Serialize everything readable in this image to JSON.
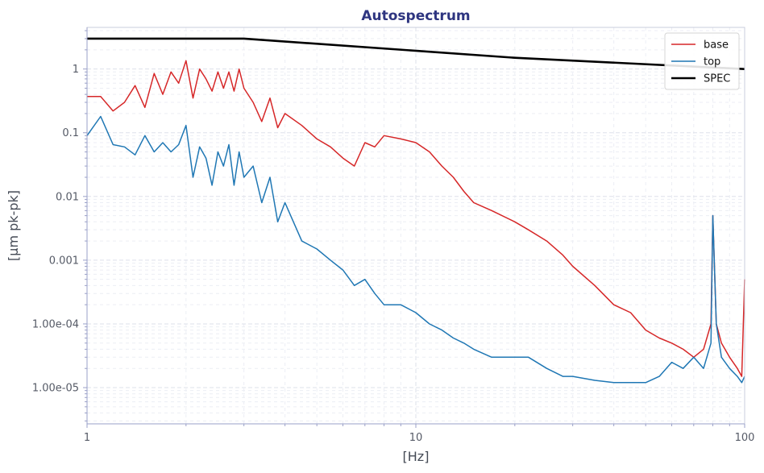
{
  "chart_data": {
    "type": "line",
    "title": "Autospectrum",
    "xlabel": "[Hz]",
    "ylabel": "[µm pk-pk]",
    "x_scale": "log",
    "y_scale": "log",
    "xlim": [
      1,
      100
    ],
    "ylim": [
      2.7e-06,
      4.5
    ],
    "x_ticks": [
      {
        "value": 1,
        "label": "1"
      },
      {
        "value": 10,
        "label": "10"
      },
      {
        "value": 100,
        "label": "100"
      }
    ],
    "y_ticks": [
      {
        "value": 1,
        "label": "1"
      },
      {
        "value": 0.1,
        "label": "0.1"
      },
      {
        "value": 0.01,
        "label": "0.01"
      },
      {
        "value": 0.001,
        "label": "0.001"
      },
      {
        "value": 0.0001,
        "label": "1.00e-04"
      },
      {
        "value": 1e-05,
        "label": "1.00e-05"
      }
    ],
    "grid": true,
    "legend_position": "top-right",
    "series": [
      {
        "name": "base",
        "color": "#d62728",
        "x": [
          1,
          1.1,
          1.2,
          1.3,
          1.4,
          1.5,
          1.6,
          1.7,
          1.8,
          1.9,
          2.0,
          2.1,
          2.2,
          2.3,
          2.4,
          2.5,
          2.6,
          2.7,
          2.8,
          2.9,
          3.0,
          3.2,
          3.4,
          3.6,
          3.8,
          4.0,
          4.5,
          5.0,
          5.5,
          6.0,
          6.5,
          7.0,
          7.5,
          8.0,
          9.0,
          10,
          11,
          12,
          13,
          14,
          15,
          17,
          20,
          22,
          25,
          28,
          30,
          35,
          40,
          45,
          50,
          55,
          60,
          65,
          70,
          75,
          79,
          80,
          82,
          85,
          90,
          95,
          98,
          100
        ],
        "y": [
          0.37,
          0.37,
          0.22,
          0.3,
          0.55,
          0.25,
          0.85,
          0.4,
          0.9,
          0.6,
          1.35,
          0.35,
          1.0,
          0.7,
          0.45,
          0.9,
          0.5,
          0.9,
          0.45,
          1.0,
          0.5,
          0.3,
          0.15,
          0.35,
          0.12,
          0.2,
          0.13,
          0.08,
          0.06,
          0.04,
          0.03,
          0.07,
          0.06,
          0.09,
          0.08,
          0.07,
          0.05,
          0.03,
          0.02,
          0.012,
          0.008,
          0.006,
          0.004,
          0.003,
          0.002,
          0.0012,
          0.0008,
          0.0004,
          0.0002,
          0.00015,
          8e-05,
          6e-05,
          5e-05,
          4e-05,
          3e-05,
          4e-05,
          0.0001,
          0.005,
          0.0001,
          5e-05,
          3e-05,
          2e-05,
          1.5e-05,
          0.0005
        ]
      },
      {
        "name": "top",
        "color": "#1f77b4",
        "x": [
          1,
          1.1,
          1.2,
          1.3,
          1.4,
          1.5,
          1.6,
          1.7,
          1.8,
          1.9,
          2.0,
          2.1,
          2.2,
          2.3,
          2.4,
          2.5,
          2.6,
          2.7,
          2.8,
          2.9,
          3.0,
          3.2,
          3.4,
          3.6,
          3.8,
          4.0,
          4.5,
          5.0,
          5.5,
          6.0,
          6.5,
          7.0,
          7.5,
          8.0,
          9.0,
          10,
          11,
          12,
          13,
          14,
          15,
          17,
          20,
          22,
          25,
          28,
          30,
          35,
          40,
          45,
          50,
          55,
          60,
          65,
          70,
          75,
          79,
          80,
          82,
          85,
          90,
          95,
          98,
          100
        ],
        "y": [
          0.09,
          0.18,
          0.065,
          0.06,
          0.045,
          0.09,
          0.05,
          0.07,
          0.05,
          0.065,
          0.13,
          0.02,
          0.06,
          0.04,
          0.015,
          0.05,
          0.03,
          0.065,
          0.015,
          0.05,
          0.02,
          0.03,
          0.008,
          0.02,
          0.004,
          0.008,
          0.002,
          0.0015,
          0.001,
          0.0007,
          0.0004,
          0.0005,
          0.0003,
          0.0002,
          0.0002,
          0.00015,
          0.0001,
          8e-05,
          6e-05,
          5e-05,
          4e-05,
          3e-05,
          3e-05,
          3e-05,
          2e-05,
          1.5e-05,
          1.5e-05,
          1.3e-05,
          1.2e-05,
          1.2e-05,
          1.2e-05,
          1.5e-05,
          2.5e-05,
          2e-05,
          3e-05,
          2e-05,
          5e-05,
          0.005,
          0.0001,
          3e-05,
          2e-05,
          1.5e-05,
          1.2e-05,
          1.5e-05
        ]
      },
      {
        "name": "SPEC",
        "color": "#000000",
        "x": [
          1,
          3,
          20,
          100
        ],
        "y": [
          3,
          3,
          1.5,
          1
        ]
      }
    ]
  }
}
